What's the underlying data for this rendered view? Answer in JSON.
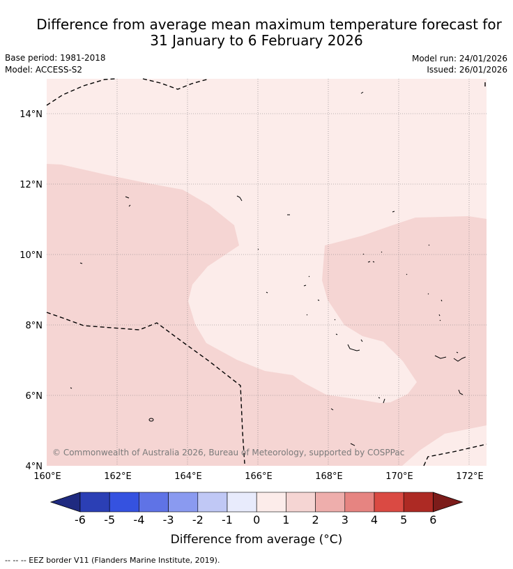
{
  "title_line1": "Difference from average mean maximum temperature forecast for",
  "title_line2": "31 January to 6 February 2026",
  "base_period": "Base period: 1981-2018",
  "model": "Model: ACCESS-S2",
  "model_run": "Model run: 24/01/2026",
  "issued": "Issued: 26/01/2026",
  "copyright": "© Commonwealth of Australia 2026, Bureau of Meteorology, supported by COSPPac",
  "lat_labels": [
    "14°N",
    "12°N",
    "10°N",
    "8°N",
    "6°N",
    "4°N"
  ],
  "lon_labels": [
    "160°E",
    "162°E",
    "164°E",
    "166°E",
    "168°E",
    "170°E",
    "172°E"
  ],
  "colorbar": {
    "ticks": [
      "-6",
      "-5",
      "-4",
      "-3",
      "-2",
      "-1",
      "0",
      "1",
      "2",
      "3",
      "4",
      "5",
      "6"
    ],
    "colors": [
      "#1f2a80",
      "#2b3fb5",
      "#3552e0",
      "#5f73e6",
      "#8a9af0",
      "#c0c8f5",
      "#e8ebfc",
      "#fcecea",
      "#f5d5d3",
      "#eeaeac",
      "#e68481",
      "#da4a43",
      "#ad2a24",
      "#7c1c1a"
    ],
    "label": "Difference from average ($^\\circ$C)",
    "label_text": "Difference from average (°C)"
  },
  "footer": "-- -- -- EEZ border V11 (Flanders Marine Institute, 2019)."
}
